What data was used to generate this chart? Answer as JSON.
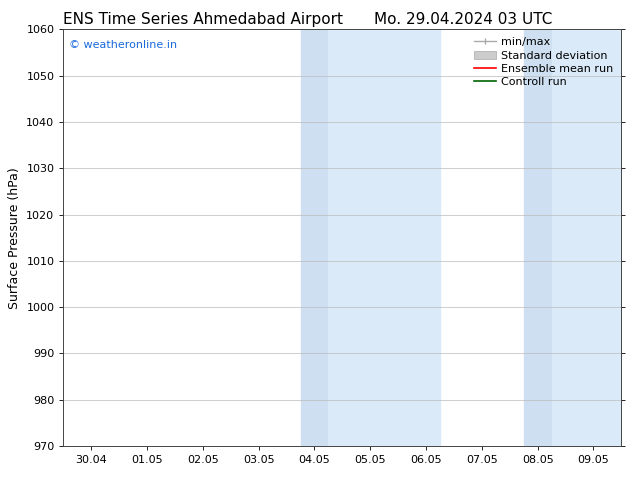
{
  "title_left": "ENS Time Series Ahmedabad Airport",
  "title_right": "Mo. 29.04.2024 03 UTC",
  "ylabel": "Surface Pressure (hPa)",
  "ylim": [
    970,
    1060
  ],
  "yticks": [
    970,
    980,
    990,
    1000,
    1010,
    1020,
    1030,
    1040,
    1050,
    1060
  ],
  "xtick_labels": [
    "30.04",
    "01.05",
    "02.05",
    "03.05",
    "04.05",
    "05.05",
    "06.05",
    "07.05",
    "08.05",
    "09.05"
  ],
  "xtick_positions": [
    0,
    1,
    2,
    3,
    4,
    5,
    6,
    7,
    8,
    9
  ],
  "xlim": [
    -0.5,
    9.5
  ],
  "shaded_regions": [
    {
      "xmin": 3.75,
      "xmax": 4.25,
      "color": "#cddff0"
    },
    {
      "xmin": 4.25,
      "xmax": 6.25,
      "color": "#daeaf8"
    },
    {
      "xmin": 7.75,
      "xmax": 8.25,
      "color": "#cddff0"
    },
    {
      "xmin": 8.25,
      "xmax": 9.5,
      "color": "#daeaf8"
    }
  ],
  "watermark_text": "© weatheronline.in",
  "watermark_color": "#1a6adb",
  "background_color": "#ffffff",
  "title_fontsize": 11,
  "tick_fontsize": 8,
  "ylabel_fontsize": 9,
  "legend_fontsize": 8
}
